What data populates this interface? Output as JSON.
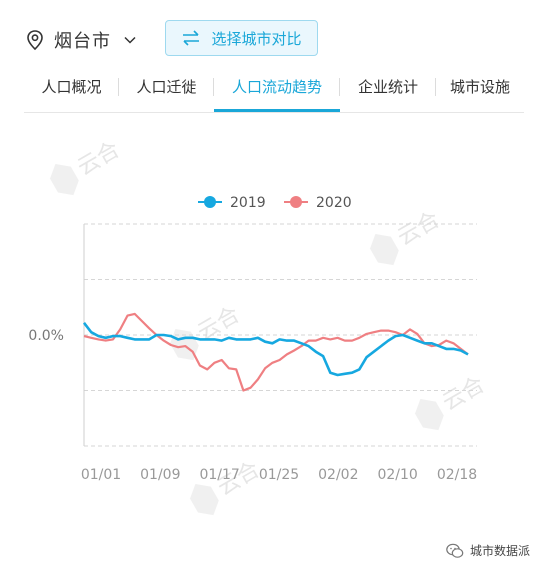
{
  "header": {
    "city": "烟台市",
    "compare_label": "选择城市对比"
  },
  "tabs": [
    {
      "label": "人口概况"
    },
    {
      "label": "人口迁徙"
    },
    {
      "label": "人口流动趋势"
    },
    {
      "label": "企业统计"
    },
    {
      "label": "城市设施"
    }
  ],
  "active_tab": 2,
  "watermark": "云合",
  "footer": {
    "brand": "城市数据派"
  },
  "colors": {
    "accent": "#1aa7d8",
    "series2019": "#16a8e0",
    "series2020": "#ef7f82"
  },
  "chart_data": {
    "type": "line",
    "title": "",
    "xlabel": "",
    "ylabel": "",
    "x_ticks": [
      "01/01",
      "01/09",
      "01/17",
      "01/25",
      "02/02",
      "02/10",
      "02/18"
    ],
    "y_tick_label": "0.0%",
    "ylim": [
      -2,
      2
    ],
    "grid": true,
    "legend": "top",
    "series": [
      {
        "name": "2019",
        "values": [
          0.22,
          0.05,
          -0.02,
          -0.05,
          -0.02,
          -0.02,
          -0.05,
          -0.08,
          -0.08,
          -0.08,
          0.0,
          0.0,
          -0.02,
          -0.08,
          -0.05,
          -0.05,
          -0.08,
          -0.08,
          -0.08,
          -0.1,
          -0.05,
          -0.08,
          -0.08,
          -0.08,
          -0.05,
          -0.12,
          -0.15,
          -0.08,
          -0.1,
          -0.1,
          -0.15,
          -0.2,
          -0.3,
          -0.38,
          -0.68,
          -0.72,
          -0.7,
          -0.68,
          -0.62,
          -0.4,
          -0.3,
          -0.2,
          -0.1,
          -0.02,
          0.0,
          -0.05,
          -0.1,
          -0.15,
          -0.15,
          -0.2,
          -0.25,
          -0.25,
          -0.28,
          -0.35
        ]
      },
      {
        "name": "2020",
        "values": [
          -0.02,
          -0.05,
          -0.08,
          -0.1,
          -0.08,
          0.1,
          0.35,
          0.38,
          0.25,
          0.12,
          0.0,
          -0.1,
          -0.18,
          -0.22,
          -0.2,
          -0.3,
          -0.55,
          -0.62,
          -0.5,
          -0.45,
          -0.6,
          -0.62,
          -1.0,
          -0.95,
          -0.8,
          -0.6,
          -0.5,
          -0.45,
          -0.35,
          -0.28,
          -0.2,
          -0.1,
          -0.1,
          -0.05,
          -0.08,
          -0.05,
          -0.1,
          -0.1,
          -0.05,
          0.02,
          0.05,
          0.08,
          0.08,
          0.05,
          0.0,
          0.1,
          0.02,
          -0.15,
          -0.2,
          -0.18,
          -0.1,
          -0.15,
          -0.25,
          -0.35
        ]
      }
    ]
  }
}
